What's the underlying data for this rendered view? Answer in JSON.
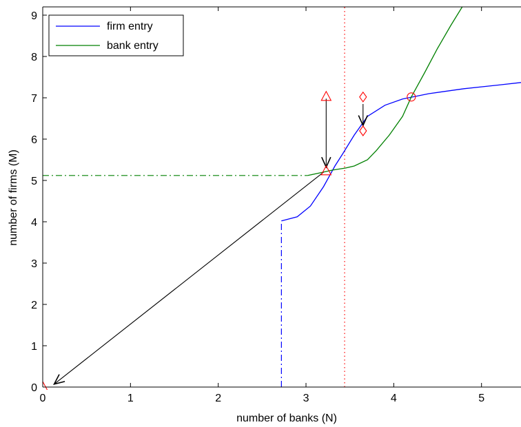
{
  "chart_data": {
    "type": "line",
    "title": "",
    "xlabel": "number of banks (N)",
    "ylabel": "number of firms (M)",
    "xlim": [
      0,
      5.45
    ],
    "ylim": [
      0,
      9.2
    ],
    "xticks": [
      0,
      1,
      2,
      3,
      4,
      5
    ],
    "yticks": [
      0,
      1,
      2,
      3,
      4,
      5,
      6,
      7,
      8,
      9
    ],
    "grid": false,
    "legend": {
      "placement": "top-left",
      "entries": [
        {
          "name": "firm entry",
          "color": "#0000ff"
        },
        {
          "name": "bank entry",
          "color": "#008000"
        }
      ]
    },
    "series": [
      {
        "name": "firm entry",
        "color": "#0000ff",
        "style": "solid",
        "points": [
          [
            2.72,
            4.02
          ],
          [
            2.9,
            4.12
          ],
          [
            3.05,
            4.38
          ],
          [
            3.2,
            4.85
          ],
          [
            3.33,
            5.35
          ],
          [
            3.42,
            5.65
          ],
          [
            3.55,
            6.1
          ],
          [
            3.7,
            6.55
          ],
          [
            3.9,
            6.82
          ],
          [
            4.1,
            6.97
          ],
          [
            4.4,
            7.1
          ],
          [
            4.8,
            7.22
          ],
          [
            5.2,
            7.31
          ],
          [
            5.45,
            7.37
          ]
        ]
      },
      {
        "name": "bank entry",
        "color": "#008000",
        "style": "solid",
        "points": [
          [
            3.02,
            5.12
          ],
          [
            3.15,
            5.18
          ],
          [
            3.3,
            5.25
          ],
          [
            3.45,
            5.3
          ],
          [
            3.55,
            5.35
          ],
          [
            3.7,
            5.5
          ],
          [
            3.8,
            5.72
          ],
          [
            3.95,
            6.1
          ],
          [
            4.1,
            6.55
          ],
          [
            4.2,
            7.02
          ],
          [
            4.35,
            7.6
          ],
          [
            4.5,
            8.2
          ],
          [
            4.65,
            8.75
          ],
          [
            4.78,
            9.2
          ]
        ]
      }
    ],
    "reference_lines": [
      {
        "kind": "vertical",
        "x": 3.44,
        "color": "#ff0000",
        "style": "dotted"
      },
      {
        "kind": "horizontal",
        "y": 5.12,
        "x_range": [
          0,
          3.02
        ],
        "color": "#008000",
        "style": "dash-dot"
      },
      {
        "kind": "vertical",
        "x": 2.72,
        "y_range": [
          0,
          4.02
        ],
        "color": "#0000ff",
        "style": "dash-dot"
      }
    ],
    "markers": [
      {
        "shape": "triangle",
        "x": 0.0,
        "y": 0.0,
        "color": "#ff0000"
      },
      {
        "shape": "triangle",
        "x": 3.23,
        "y": 7.02,
        "color": "#ff0000"
      },
      {
        "shape": "triangle",
        "x": 3.23,
        "y": 5.22,
        "color": "#ff0000"
      },
      {
        "shape": "diamond",
        "x": 3.65,
        "y": 7.02,
        "color": "#ff0000"
      },
      {
        "shape": "diamond",
        "x": 3.65,
        "y": 6.2,
        "color": "#ff0000"
      },
      {
        "shape": "circle",
        "x": 4.2,
        "y": 7.02,
        "color": "#ff0000"
      }
    ],
    "arrows": [
      {
        "from": [
          3.23,
          6.98
        ],
        "to": [
          3.23,
          5.32
        ],
        "color": "#000000"
      },
      {
        "from": [
          3.65,
          6.85
        ],
        "to": [
          3.65,
          6.33
        ],
        "color": "#000000"
      },
      {
        "from": [
          3.2,
          5.2
        ],
        "to": [
          0.13,
          0.07
        ],
        "color": "#000000"
      }
    ]
  }
}
